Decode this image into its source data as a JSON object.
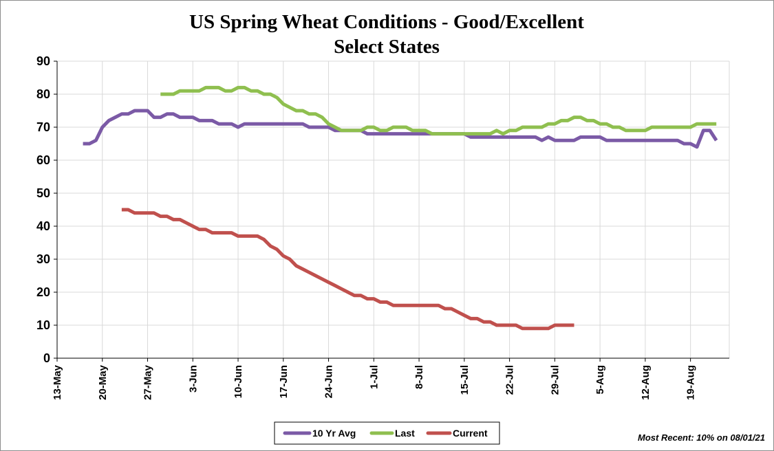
{
  "chart_data": {
    "type": "line",
    "title": "US Spring Wheat Conditions - Good/Excellent",
    "subtitle": "Select States",
    "xlabel": "",
    "ylabel": "",
    "ylim": [
      0,
      90
    ],
    "yticks": [
      0,
      10,
      20,
      30,
      40,
      50,
      60,
      70,
      80,
      90
    ],
    "xlim": [
      "13-May",
      "25-Aug"
    ],
    "x_tick_labels": [
      "13-May",
      "20-May",
      "27-May",
      "3-Jun",
      "10-Jun",
      "17-Jun",
      "24-Jun",
      "1-Jul",
      "8-Jul",
      "15-Jul",
      "22-Jul",
      "29-Jul",
      "5-Aug",
      "12-Aug",
      "19-Aug"
    ],
    "grid": true,
    "legend_position": "bottom",
    "note": "Most Recent: 10% on 08/01/21",
    "series": [
      {
        "name": "10 Yr Avg",
        "color": "#7b5aa6",
        "points": [
          [
            "17-May",
            65
          ],
          [
            "18-May",
            65
          ],
          [
            "19-May",
            66
          ],
          [
            "20-May",
            70
          ],
          [
            "21-May",
            72
          ],
          [
            "22-May",
            73
          ],
          [
            "23-May",
            74
          ],
          [
            "24-May",
            74
          ],
          [
            "25-May",
            75
          ],
          [
            "26-May",
            75
          ],
          [
            "27-May",
            75
          ],
          [
            "28-May",
            73
          ],
          [
            "29-May",
            73
          ],
          [
            "30-May",
            74
          ],
          [
            "31-May",
            74
          ],
          [
            "1-Jun",
            73
          ],
          [
            "2-Jun",
            73
          ],
          [
            "3-Jun",
            73
          ],
          [
            "4-Jun",
            72
          ],
          [
            "5-Jun",
            72
          ],
          [
            "6-Jun",
            72
          ],
          [
            "7-Jun",
            71
          ],
          [
            "8-Jun",
            71
          ],
          [
            "9-Jun",
            71
          ],
          [
            "10-Jun",
            70
          ],
          [
            "11-Jun",
            71
          ],
          [
            "12-Jun",
            71
          ],
          [
            "13-Jun",
            71
          ],
          [
            "14-Jun",
            71
          ],
          [
            "15-Jun",
            71
          ],
          [
            "16-Jun",
            71
          ],
          [
            "17-Jun",
            71
          ],
          [
            "18-Jun",
            71
          ],
          [
            "19-Jun",
            71
          ],
          [
            "20-Jun",
            71
          ],
          [
            "21-Jun",
            70
          ],
          [
            "22-Jun",
            70
          ],
          [
            "23-Jun",
            70
          ],
          [
            "24-Jun",
            70
          ],
          [
            "25-Jun",
            69
          ],
          [
            "26-Jun",
            69
          ],
          [
            "27-Jun",
            69
          ],
          [
            "28-Jun",
            69
          ],
          [
            "29-Jun",
            69
          ],
          [
            "30-Jun",
            68
          ],
          [
            "1-Jul",
            68
          ],
          [
            "2-Jul",
            68
          ],
          [
            "3-Jul",
            68
          ],
          [
            "4-Jul",
            68
          ],
          [
            "5-Jul",
            68
          ],
          [
            "6-Jul",
            68
          ],
          [
            "7-Jul",
            68
          ],
          [
            "8-Jul",
            68
          ],
          [
            "9-Jul",
            68
          ],
          [
            "10-Jul",
            68
          ],
          [
            "11-Jul",
            68
          ],
          [
            "12-Jul",
            68
          ],
          [
            "13-Jul",
            68
          ],
          [
            "14-Jul",
            68
          ],
          [
            "15-Jul",
            68
          ],
          [
            "16-Jul",
            67
          ],
          [
            "17-Jul",
            67
          ],
          [
            "18-Jul",
            67
          ],
          [
            "19-Jul",
            67
          ],
          [
            "20-Jul",
            67
          ],
          [
            "21-Jul",
            67
          ],
          [
            "22-Jul",
            67
          ],
          [
            "23-Jul",
            67
          ],
          [
            "24-Jul",
            67
          ],
          [
            "25-Jul",
            67
          ],
          [
            "26-Jul",
            67
          ],
          [
            "27-Jul",
            66
          ],
          [
            "28-Jul",
            67
          ],
          [
            "29-Jul",
            66
          ],
          [
            "30-Jul",
            66
          ],
          [
            "31-Jul",
            66
          ],
          [
            "1-Aug",
            66
          ],
          [
            "2-Aug",
            67
          ],
          [
            "3-Aug",
            67
          ],
          [
            "4-Aug",
            67
          ],
          [
            "5-Aug",
            67
          ],
          [
            "6-Aug",
            66
          ],
          [
            "7-Aug",
            66
          ],
          [
            "8-Aug",
            66
          ],
          [
            "9-Aug",
            66
          ],
          [
            "10-Aug",
            66
          ],
          [
            "11-Aug",
            66
          ],
          [
            "12-Aug",
            66
          ],
          [
            "13-Aug",
            66
          ],
          [
            "14-Aug",
            66
          ],
          [
            "15-Aug",
            66
          ],
          [
            "16-Aug",
            66
          ],
          [
            "17-Aug",
            66
          ],
          [
            "18-Aug",
            65
          ],
          [
            "19-Aug",
            65
          ],
          [
            "20-Aug",
            64
          ],
          [
            "21-Aug",
            69
          ],
          [
            "22-Aug",
            69
          ],
          [
            "23-Aug",
            66
          ]
        ]
      },
      {
        "name": "Last",
        "color": "#8fbf4f",
        "points": [
          [
            "29-May",
            80
          ],
          [
            "30-May",
            80
          ],
          [
            "31-May",
            80
          ],
          [
            "1-Jun",
            81
          ],
          [
            "2-Jun",
            81
          ],
          [
            "3-Jun",
            81
          ],
          [
            "4-Jun",
            81
          ],
          [
            "5-Jun",
            82
          ],
          [
            "6-Jun",
            82
          ],
          [
            "7-Jun",
            82
          ],
          [
            "8-Jun",
            81
          ],
          [
            "9-Jun",
            81
          ],
          [
            "10-Jun",
            82
          ],
          [
            "11-Jun",
            82
          ],
          [
            "12-Jun",
            81
          ],
          [
            "13-Jun",
            81
          ],
          [
            "14-Jun",
            80
          ],
          [
            "15-Jun",
            80
          ],
          [
            "16-Jun",
            79
          ],
          [
            "17-Jun",
            77
          ],
          [
            "18-Jun",
            76
          ],
          [
            "19-Jun",
            75
          ],
          [
            "20-Jun",
            75
          ],
          [
            "21-Jun",
            74
          ],
          [
            "22-Jun",
            74
          ],
          [
            "23-Jun",
            73
          ],
          [
            "24-Jun",
            71
          ],
          [
            "25-Jun",
            70
          ],
          [
            "26-Jun",
            69
          ],
          [
            "27-Jun",
            69
          ],
          [
            "28-Jun",
            69
          ],
          [
            "29-Jun",
            69
          ],
          [
            "30-Jun",
            70
          ],
          [
            "1-Jul",
            70
          ],
          [
            "2-Jul",
            69
          ],
          [
            "3-Jul",
            69
          ],
          [
            "4-Jul",
            70
          ],
          [
            "5-Jul",
            70
          ],
          [
            "6-Jul",
            70
          ],
          [
            "7-Jul",
            69
          ],
          [
            "8-Jul",
            69
          ],
          [
            "9-Jul",
            69
          ],
          [
            "10-Jul",
            68
          ],
          [
            "11-Jul",
            68
          ],
          [
            "12-Jul",
            68
          ],
          [
            "13-Jul",
            68
          ],
          [
            "14-Jul",
            68
          ],
          [
            "15-Jul",
            68
          ],
          [
            "16-Jul",
            68
          ],
          [
            "17-Jul",
            68
          ],
          [
            "18-Jul",
            68
          ],
          [
            "19-Jul",
            68
          ],
          [
            "20-Jul",
            69
          ],
          [
            "21-Jul",
            68
          ],
          [
            "22-Jul",
            69
          ],
          [
            "23-Jul",
            69
          ],
          [
            "24-Jul",
            70
          ],
          [
            "25-Jul",
            70
          ],
          [
            "26-Jul",
            70
          ],
          [
            "27-Jul",
            70
          ],
          [
            "28-Jul",
            71
          ],
          [
            "29-Jul",
            71
          ],
          [
            "30-Jul",
            72
          ],
          [
            "31-Jul",
            72
          ],
          [
            "1-Aug",
            73
          ],
          [
            "2-Aug",
            73
          ],
          [
            "3-Aug",
            72
          ],
          [
            "4-Aug",
            72
          ],
          [
            "5-Aug",
            71
          ],
          [
            "6-Aug",
            71
          ],
          [
            "7-Aug",
            70
          ],
          [
            "8-Aug",
            70
          ],
          [
            "9-Aug",
            69
          ],
          [
            "10-Aug",
            69
          ],
          [
            "11-Aug",
            69
          ],
          [
            "12-Aug",
            69
          ],
          [
            "13-Aug",
            70
          ],
          [
            "14-Aug",
            70
          ],
          [
            "15-Aug",
            70
          ],
          [
            "16-Aug",
            70
          ],
          [
            "17-Aug",
            70
          ],
          [
            "18-Aug",
            70
          ],
          [
            "19-Aug",
            70
          ],
          [
            "20-Aug",
            71
          ],
          [
            "21-Aug",
            71
          ],
          [
            "22-Aug",
            71
          ],
          [
            "23-Aug",
            71
          ]
        ]
      },
      {
        "name": "Current",
        "color": "#c0504d",
        "points": [
          [
            "23-May",
            45
          ],
          [
            "24-May",
            45
          ],
          [
            "25-May",
            44
          ],
          [
            "26-May",
            44
          ],
          [
            "27-May",
            44
          ],
          [
            "28-May",
            44
          ],
          [
            "29-May",
            43
          ],
          [
            "30-May",
            43
          ],
          [
            "31-May",
            42
          ],
          [
            "1-Jun",
            42
          ],
          [
            "2-Jun",
            41
          ],
          [
            "3-Jun",
            40
          ],
          [
            "4-Jun",
            39
          ],
          [
            "5-Jun",
            39
          ],
          [
            "6-Jun",
            38
          ],
          [
            "7-Jun",
            38
          ],
          [
            "8-Jun",
            38
          ],
          [
            "9-Jun",
            38
          ],
          [
            "10-Jun",
            37
          ],
          [
            "11-Jun",
            37
          ],
          [
            "12-Jun",
            37
          ],
          [
            "13-Jun",
            37
          ],
          [
            "14-Jun",
            36
          ],
          [
            "15-Jun",
            34
          ],
          [
            "16-Jun",
            33
          ],
          [
            "17-Jun",
            31
          ],
          [
            "18-Jun",
            30
          ],
          [
            "19-Jun",
            28
          ],
          [
            "20-Jun",
            27
          ],
          [
            "21-Jun",
            26
          ],
          [
            "22-Jun",
            25
          ],
          [
            "23-Jun",
            24
          ],
          [
            "24-Jun",
            23
          ],
          [
            "25-Jun",
            22
          ],
          [
            "26-Jun",
            21
          ],
          [
            "27-Jun",
            20
          ],
          [
            "28-Jun",
            19
          ],
          [
            "29-Jun",
            19
          ],
          [
            "30-Jun",
            18
          ],
          [
            "1-Jul",
            18
          ],
          [
            "2-Jul",
            17
          ],
          [
            "3-Jul",
            17
          ],
          [
            "4-Jul",
            16
          ],
          [
            "5-Jul",
            16
          ],
          [
            "6-Jul",
            16
          ],
          [
            "7-Jul",
            16
          ],
          [
            "8-Jul",
            16
          ],
          [
            "9-Jul",
            16
          ],
          [
            "10-Jul",
            16
          ],
          [
            "11-Jul",
            16
          ],
          [
            "12-Jul",
            15
          ],
          [
            "13-Jul",
            15
          ],
          [
            "14-Jul",
            14
          ],
          [
            "15-Jul",
            13
          ],
          [
            "16-Jul",
            12
          ],
          [
            "17-Jul",
            12
          ],
          [
            "18-Jul",
            11
          ],
          [
            "19-Jul",
            11
          ],
          [
            "20-Jul",
            10
          ],
          [
            "21-Jul",
            10
          ],
          [
            "22-Jul",
            10
          ],
          [
            "23-Jul",
            10
          ],
          [
            "24-Jul",
            9
          ],
          [
            "25-Jul",
            9
          ],
          [
            "26-Jul",
            9
          ],
          [
            "27-Jul",
            9
          ],
          [
            "28-Jul",
            9
          ],
          [
            "29-Jul",
            10
          ],
          [
            "30-Jul",
            10
          ],
          [
            "31-Jul",
            10
          ],
          [
            "1-Aug",
            10
          ]
        ]
      }
    ]
  }
}
